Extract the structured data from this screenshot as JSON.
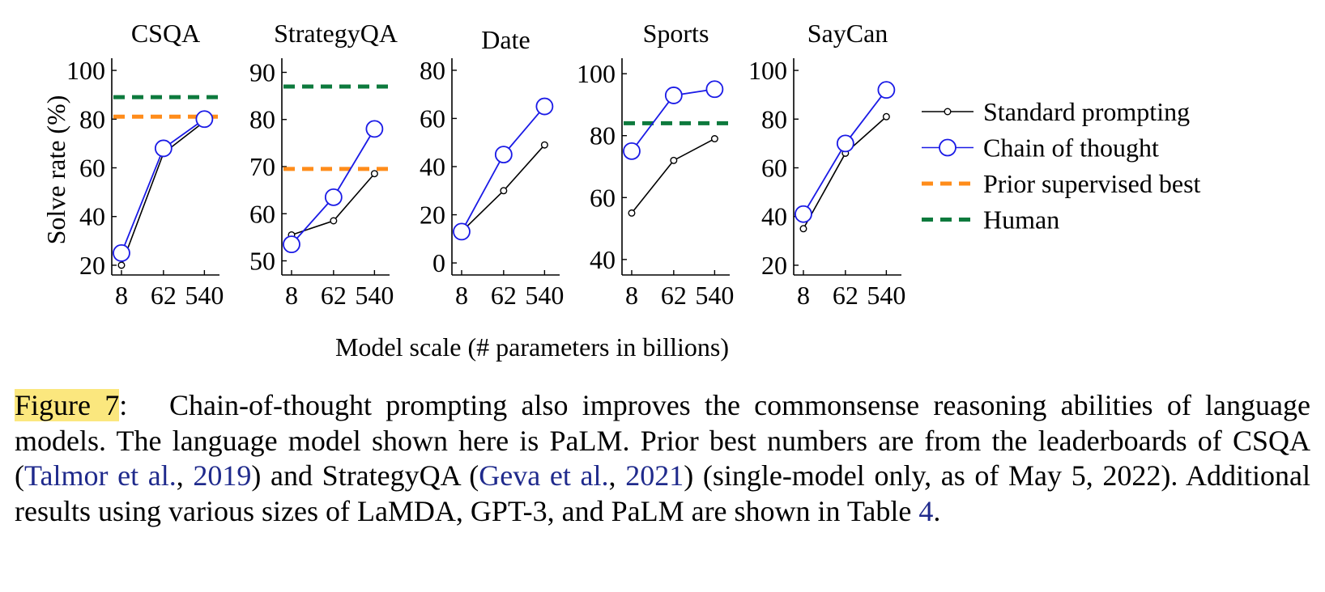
{
  "chart_data": [
    {
      "type": "line",
      "title": "CSQA",
      "ylabel": "Solve rate (%)",
      "categories": [
        "8",
        "62",
        "540"
      ],
      "ylim": [
        16,
        105
      ],
      "yticks": [
        20,
        40,
        60,
        80,
        100
      ],
      "series": [
        {
          "name": "Standard prompting",
          "values": [
            20,
            66,
            79
          ]
        },
        {
          "name": "Chain of thought",
          "values": [
            25,
            68,
            80
          ]
        }
      ],
      "baselines": [
        {
          "name": "Prior supervised best",
          "value": 81
        },
        {
          "name": "Human",
          "value": 89
        }
      ]
    },
    {
      "type": "line",
      "title": "StrategyQA",
      "ylabel": "",
      "categories": [
        "8",
        "62",
        "540"
      ],
      "ylim": [
        47,
        93
      ],
      "yticks": [
        50,
        60,
        70,
        80,
        90
      ],
      "series": [
        {
          "name": "Standard prompting",
          "values": [
            55.5,
            58.5,
            68.5
          ]
        },
        {
          "name": "Chain of thought",
          "values": [
            53.5,
            63.5,
            78
          ]
        }
      ],
      "baselines": [
        {
          "name": "Prior supervised best",
          "value": 69.5
        },
        {
          "name": "Human",
          "value": 87
        }
      ]
    },
    {
      "type": "line",
      "title": "Date",
      "ylabel": "",
      "categories": [
        "8",
        "62",
        "540"
      ],
      "ylim": [
        -5,
        85
      ],
      "yticks": [
        0,
        20,
        40,
        60,
        80
      ],
      "series": [
        {
          "name": "Standard prompting",
          "values": [
            13,
            30,
            49
          ]
        },
        {
          "name": "Chain of thought",
          "values": [
            13,
            45,
            65
          ]
        }
      ],
      "baselines": []
    },
    {
      "type": "line",
      "title": "Sports",
      "ylabel": "",
      "categories": [
        "8",
        "62",
        "540"
      ],
      "ylim": [
        35,
        105
      ],
      "yticks": [
        40,
        60,
        80,
        100
      ],
      "series": [
        {
          "name": "Standard prompting",
          "values": [
            55,
            72,
            79
          ]
        },
        {
          "name": "Chain of thought",
          "values": [
            75,
            93,
            95
          ]
        }
      ],
      "baselines": [
        {
          "name": "Human",
          "value": 84
        }
      ]
    },
    {
      "type": "line",
      "title": "SayCan",
      "ylabel": "",
      "categories": [
        "8",
        "62",
        "540"
      ],
      "ylim": [
        16,
        105
      ],
      "yticks": [
        20,
        40,
        60,
        80,
        100
      ],
      "series": [
        {
          "name": "Standard prompting",
          "values": [
            35,
            66,
            81
          ]
        },
        {
          "name": "Chain of thought",
          "values": [
            41,
            70,
            92
          ]
        }
      ],
      "baselines": []
    }
  ],
  "shared_xlabel": "Model scale (# parameters in billions)",
  "legend": {
    "placement": "right",
    "entries": [
      {
        "name": "Standard prompting",
        "color": "#000000",
        "style": "line-small-circle"
      },
      {
        "name": "Chain of thought",
        "color": "#1a1ae6",
        "style": "line-large-circle"
      },
      {
        "name": "Prior supervised best",
        "color": "#ff8c1a",
        "style": "dashed"
      },
      {
        "name": "Human",
        "color": "#0d7a3d",
        "style": "dashed"
      }
    ]
  },
  "colors": {
    "standard": "#000000",
    "cot": "#1a1ae6",
    "prior": "#ff8c1a",
    "human": "#0d7a3d",
    "highlight": "#fbe77e",
    "cite": "#1f2a8c"
  },
  "caption": {
    "label": "Figure 7",
    "colon": ":",
    "text1": "Chain-of-thought prompting also improves the commonsense reasoning abilities of language models.  The language model shown here is PaLM. Prior best numbers are from the leaderboards of CSQA (",
    "cite1_author": "Talmor et al.",
    "sep1": ", ",
    "cite1_year": "2019",
    "text2": ") and StrategyQA (",
    "cite2_author": "Geva et al.",
    "sep2": ", ",
    "cite2_year": "2021",
    "text3": ") (single-model only, as of May 5, 2022). Additional results using various sizes of LaMDA, GPT-3, and PaLM are shown in Table ",
    "table_ref": "4",
    "end": "."
  }
}
